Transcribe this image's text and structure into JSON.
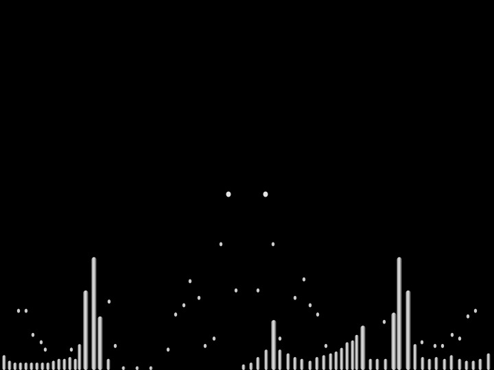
{
  "visualizer": {
    "background": "#000000",
    "bar_color_light": "#e6e6e6",
    "bar_color_mid": "#9a9a9a",
    "bar_color_dark": "#4a4a4a",
    "peak_color": "#f0f0f0",
    "bars": [
      {
        "x": 6,
        "level": 0.04
      },
      {
        "x": 14,
        "level": 0.025
      },
      {
        "x": 22,
        "level": 0.02
      },
      {
        "x": 30,
        "level": 0.02
      },
      {
        "x": 38,
        "level": 0.02
      },
      {
        "x": 46,
        "level": 0.02
      },
      {
        "x": 54,
        "level": 0.02
      },
      {
        "x": 62,
        "level": 0.02
      },
      {
        "x": 70,
        "level": 0.02
      },
      {
        "x": 78,
        "level": 0.025
      },
      {
        "x": 86,
        "level": 0.03
      },
      {
        "x": 94,
        "level": 0.03
      },
      {
        "x": 102,
        "level": 0.035
      },
      {
        "x": 110,
        "level": 0.03
      },
      {
        "x": 116,
        "level": 0.07
      },
      {
        "x": 125,
        "level": 0.215
      },
      {
        "x": 137,
        "level": 0.305
      },
      {
        "x": 146,
        "level": 0.145
      },
      {
        "x": 158,
        "level": 0.03
      },
      {
        "x": 180,
        "level": 0.01
      },
      {
        "x": 200,
        "level": 0.01
      },
      {
        "x": 220,
        "level": 0.01
      },
      {
        "x": 355,
        "level": 0.015
      },
      {
        "x": 366,
        "level": 0.02
      },
      {
        "x": 376,
        "level": 0.035
      },
      {
        "x": 388,
        "level": 0.055
      },
      {
        "x": 399,
        "level": 0.135
      },
      {
        "x": 408,
        "level": 0.055
      },
      {
        "x": 420,
        "level": 0.045
      },
      {
        "x": 430,
        "level": 0.035
      },
      {
        "x": 440,
        "level": 0.03
      },
      {
        "x": 452,
        "level": 0.025
      },
      {
        "x": 462,
        "level": 0.035
      },
      {
        "x": 472,
        "level": 0.04
      },
      {
        "x": 482,
        "level": 0.045
      },
      {
        "x": 490,
        "level": 0.05
      },
      {
        "x": 498,
        "level": 0.06
      },
      {
        "x": 506,
        "level": 0.075
      },
      {
        "x": 514,
        "level": 0.08
      },
      {
        "x": 520,
        "level": 0.095
      },
      {
        "x": 529,
        "level": 0.12
      },
      {
        "x": 540,
        "level": 0.03
      },
      {
        "x": 550,
        "level": 0.03
      },
      {
        "x": 562,
        "level": 0.03
      },
      {
        "x": 574,
        "level": 0.155
      },
      {
        "x": 582,
        "level": 0.305
      },
      {
        "x": 595,
        "level": 0.215
      },
      {
        "x": 605,
        "level": 0.07
      },
      {
        "x": 616,
        "level": 0.035
      },
      {
        "x": 626,
        "level": 0.03
      },
      {
        "x": 636,
        "level": 0.035
      },
      {
        "x": 648,
        "level": 0.03
      },
      {
        "x": 658,
        "level": 0.04
      },
      {
        "x": 670,
        "level": 0.03
      },
      {
        "x": 680,
        "level": 0.025
      },
      {
        "x": 690,
        "level": 0.025
      },
      {
        "x": 700,
        "level": 0.03
      },
      {
        "x": 712,
        "level": 0.045
      }
    ],
    "peaks": [
      {
        "x": 27,
        "level": 0.16
      },
      {
        "x": 38,
        "level": 0.16
      },
      {
        "x": 48,
        "level": 0.095
      },
      {
        "x": 60,
        "level": 0.075
      },
      {
        "x": 66,
        "level": 0.055
      },
      {
        "x": 104,
        "level": 0.055
      },
      {
        "x": 159,
        "level": 0.185
      },
      {
        "x": 168,
        "level": 0.065
      },
      {
        "x": 245,
        "level": 0.055
      },
      {
        "x": 256,
        "level": 0.15
      },
      {
        "x": 268,
        "level": 0.175
      },
      {
        "x": 277,
        "level": 0.24
      },
      {
        "x": 290,
        "level": 0.195
      },
      {
        "x": 299,
        "level": 0.065
      },
      {
        "x": 312,
        "level": 0.085
      },
      {
        "x": 322,
        "level": 0.34
      },
      {
        "x": 333,
        "level": 0.475
      },
      {
        "x": 344,
        "level": 0.215
      },
      {
        "x": 376,
        "level": 0.215
      },
      {
        "x": 387,
        "level": 0.475
      },
      {
        "x": 398,
        "level": 0.34
      },
      {
        "x": 408,
        "level": 0.085
      },
      {
        "x": 430,
        "level": 0.195
      },
      {
        "x": 443,
        "level": 0.245
      },
      {
        "x": 452,
        "level": 0.175
      },
      {
        "x": 463,
        "level": 0.15
      },
      {
        "x": 475,
        "level": 0.065
      },
      {
        "x": 560,
        "level": 0.13
      },
      {
        "x": 615,
        "level": 0.075
      },
      {
        "x": 634,
        "level": 0.065
      },
      {
        "x": 645,
        "level": 0.065
      },
      {
        "x": 659,
        "level": 0.095
      },
      {
        "x": 670,
        "level": 0.085
      },
      {
        "x": 682,
        "level": 0.145
      },
      {
        "x": 693,
        "level": 0.16
      }
    ]
  }
}
